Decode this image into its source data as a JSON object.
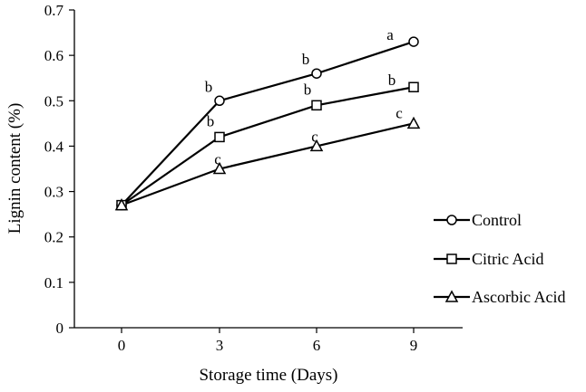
{
  "chart_data": {
    "type": "line",
    "title": "",
    "xlabel": "Storage time (Days)",
    "ylabel": "Lignin content (%)",
    "categories": [
      "0",
      "3",
      "6",
      "9"
    ],
    "ylim": [
      0,
      0.7
    ],
    "y_ticks": [
      "0",
      "0.1",
      "0.2",
      "0.3",
      "0.4",
      "0.5",
      "0.6",
      "0.7"
    ],
    "grid": false,
    "legend_position": "right",
    "series": [
      {
        "name": "Control",
        "marker": "circle",
        "values": [
          0.27,
          0.5,
          0.56,
          0.63
        ],
        "letters": [
          "",
          "b",
          "b",
          "a"
        ]
      },
      {
        "name": "Citric Acid",
        "marker": "square",
        "values": [
          0.27,
          0.42,
          0.49,
          0.53
        ],
        "letters": [
          "",
          "b",
          "b",
          "b"
        ]
      },
      {
        "name": "Ascorbic Acid",
        "marker": "triangle",
        "values": [
          0.27,
          0.35,
          0.4,
          0.45
        ],
        "letters": [
          "",
          "c",
          "c",
          "c"
        ]
      }
    ],
    "colors": {
      "line": "#000000",
      "background": "#ffffff"
    }
  }
}
